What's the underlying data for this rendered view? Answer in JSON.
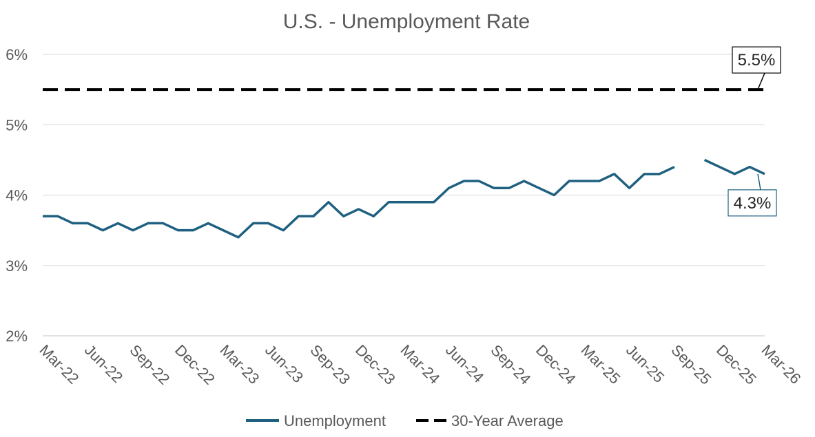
{
  "chart_data": {
    "type": "line",
    "title": "U.S. - Unemployment Rate",
    "xlabel": "",
    "ylabel": "",
    "ylim": [
      2,
      6
    ],
    "y_ticks": [
      "2%",
      "3%",
      "4%",
      "5%",
      "6%"
    ],
    "y_tick_values": [
      2,
      3,
      4,
      5,
      6
    ],
    "grid": true,
    "legend_position": "bottom",
    "x_tick_labels": [
      "Mar-22",
      "Jun-22",
      "Sep-22",
      "Dec-22",
      "Mar-23",
      "Jun-23",
      "Sep-23",
      "Dec-23",
      "Mar-24",
      "Jun-24",
      "Sep-24",
      "Dec-24",
      "Mar-25",
      "Jun-25",
      "Sep-25",
      "Dec-25",
      "Mar-26"
    ],
    "x": [
      "Mar-22",
      "Apr-22",
      "May-22",
      "Jun-22",
      "Jul-22",
      "Aug-22",
      "Sep-22",
      "Oct-22",
      "Nov-22",
      "Dec-22",
      "Jan-23",
      "Feb-23",
      "Mar-23",
      "Apr-23",
      "May-23",
      "Jun-23",
      "Jul-23",
      "Aug-23",
      "Sep-23",
      "Oct-23",
      "Nov-23",
      "Dec-23",
      "Jan-24",
      "Feb-24",
      "Mar-24",
      "Apr-24",
      "May-24",
      "Jun-24",
      "Jul-24",
      "Aug-24",
      "Sep-24",
      "Oct-24",
      "Nov-24",
      "Dec-24",
      "Jan-25",
      "Feb-25",
      "Mar-25",
      "Apr-25",
      "May-25",
      "Jun-25",
      "Jul-25",
      "Aug-25",
      "Sep-25",
      "Oct-25",
      "Nov-25",
      "Dec-25",
      "Jan-26",
      "Feb-26",
      "Mar-26"
    ],
    "series": [
      {
        "name": "Unemployment",
        "color": "#1f6080",
        "style": "solid",
        "values": [
          3.7,
          3.7,
          3.6,
          3.6,
          3.5,
          3.6,
          3.5,
          3.6,
          3.6,
          3.5,
          3.5,
          3.6,
          3.5,
          3.4,
          3.6,
          3.6,
          3.5,
          3.7,
          3.7,
          3.9,
          3.7,
          3.8,
          3.7,
          3.9,
          3.9,
          3.9,
          3.9,
          4.1,
          4.2,
          4.2,
          4.1,
          4.1,
          4.2,
          4.1,
          4.0,
          4.2,
          4.2,
          4.2,
          4.3,
          4.1,
          4.3,
          4.3,
          4.4,
          null,
          4.5,
          4.4,
          4.3,
          4.4,
          4.3
        ]
      },
      {
        "name": "30-Year Average",
        "color": "#000000",
        "style": "dashed",
        "values": [
          5.5,
          5.5,
          5.5,
          5.5,
          5.5,
          5.5,
          5.5,
          5.5,
          5.5,
          5.5,
          5.5,
          5.5,
          5.5,
          5.5,
          5.5,
          5.5,
          5.5,
          5.5,
          5.5,
          5.5,
          5.5,
          5.5,
          5.5,
          5.5,
          5.5,
          5.5,
          5.5,
          5.5,
          5.5,
          5.5,
          5.5,
          5.5,
          5.5,
          5.5,
          5.5,
          5.5,
          5.5,
          5.5,
          5.5,
          5.5,
          5.5,
          5.5,
          5.5,
          5.5,
          5.5,
          5.5,
          5.5,
          5.5,
          5.5
        ]
      }
    ],
    "annotations": [
      {
        "text": "5.5%",
        "series": "30-Year Average",
        "point": "Mar-26"
      },
      {
        "text": "4.3%",
        "series": "Unemployment",
        "point": "Mar-26"
      }
    ]
  }
}
